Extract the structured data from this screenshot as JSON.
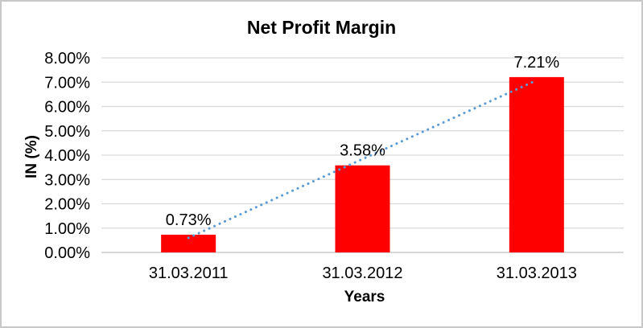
{
  "chart_data": {
    "type": "bar",
    "title": "Net Profit Margin",
    "xlabel": "Years",
    "ylabel": "IN (%)",
    "categories": [
      "31.03.2011",
      "31.03.2012",
      "31.03.2013"
    ],
    "values": [
      0.73,
      3.58,
      7.21
    ],
    "data_labels": [
      "0.73%",
      "3.58%",
      "7.21%"
    ],
    "ytick_labels": [
      "0.00%",
      "1.00%",
      "2.00%",
      "3.00%",
      "4.00%",
      "5.00%",
      "6.00%",
      "7.00%",
      "8.00%"
    ],
    "ylim": [
      0,
      8
    ],
    "grid": true,
    "legend": "none",
    "bar_color": "#FF0000",
    "gridline_color": "#D9D9D9",
    "axis_line_color": "#BFBFBF",
    "text_color": "#000000",
    "trendline": {
      "type": "linear",
      "style": "dotted",
      "color": "#5B9BD5"
    }
  }
}
